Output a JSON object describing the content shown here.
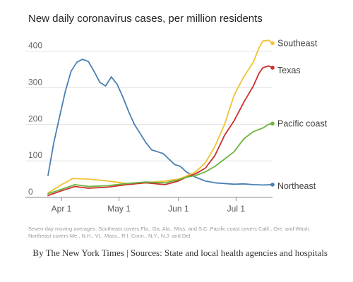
{
  "chart_data": {
    "type": "line",
    "title": "New daily coronavirus cases, per million residents",
    "x_ticks": [
      "Apr 1",
      "May 1",
      "Jun 1",
      "Jul 1"
    ],
    "y_ticks": [
      0,
      100,
      200,
      300,
      400
    ],
    "ylim": [
      0,
      440
    ],
    "x_range": [
      "2020-03-25",
      "2020-07-20"
    ],
    "grid": true,
    "legend": "direct labels at line ends",
    "series": [
      {
        "name": "Northeast",
        "color": "#4a7fb3",
        "x": [
          "2020-03-25",
          "2020-03-28",
          "2020-03-31",
          "2020-04-03",
          "2020-04-06",
          "2020-04-09",
          "2020-04-12",
          "2020-04-15",
          "2020-04-18",
          "2020-04-21",
          "2020-04-24",
          "2020-04-27",
          "2020-04-30",
          "2020-05-03",
          "2020-05-06",
          "2020-05-09",
          "2020-05-12",
          "2020-05-15",
          "2020-05-18",
          "2020-05-21",
          "2020-05-24",
          "2020-05-27",
          "2020-05-30",
          "2020-06-02",
          "2020-06-05",
          "2020-06-10",
          "2020-06-15",
          "2020-06-20",
          "2020-06-25",
          "2020-06-30",
          "2020-07-05",
          "2020-07-10",
          "2020-07-15",
          "2020-07-20"
        ],
        "values": [
          60,
          150,
          220,
          290,
          345,
          370,
          378,
          372,
          345,
          315,
          305,
          330,
          310,
          275,
          235,
          200,
          175,
          150,
          130,
          125,
          120,
          105,
          90,
          85,
          70,
          55,
          45,
          40,
          38,
          36,
          37,
          35,
          34,
          35
        ]
      },
      {
        "name": "Southeast",
        "color": "#f1c232",
        "x": [
          "2020-03-25",
          "2020-04-01",
          "2020-04-07",
          "2020-04-15",
          "2020-04-25",
          "2020-05-05",
          "2020-05-15",
          "2020-05-25",
          "2020-06-01",
          "2020-06-05",
          "2020-06-10",
          "2020-06-15",
          "2020-06-20",
          "2020-06-25",
          "2020-06-30",
          "2020-07-05",
          "2020-07-10",
          "2020-07-13",
          "2020-07-15",
          "2020-07-18",
          "2020-07-20"
        ],
        "values": [
          12,
          35,
          52,
          50,
          45,
          38,
          40,
          45,
          50,
          58,
          70,
          95,
          140,
          200,
          280,
          330,
          370,
          410,
          428,
          430,
          422
        ]
      },
      {
        "name": "Texas",
        "color": "#c9302c",
        "x": [
          "2020-03-25",
          "2020-04-01",
          "2020-04-08",
          "2020-04-15",
          "2020-04-25",
          "2020-05-05",
          "2020-05-15",
          "2020-05-25",
          "2020-06-01",
          "2020-06-05",
          "2020-06-10",
          "2020-06-15",
          "2020-06-20",
          "2020-06-25",
          "2020-06-30",
          "2020-07-05",
          "2020-07-10",
          "2020-07-13",
          "2020-07-15",
          "2020-07-18",
          "2020-07-20"
        ],
        "values": [
          5,
          18,
          30,
          25,
          28,
          35,
          40,
          35,
          45,
          55,
          65,
          80,
          115,
          170,
          210,
          260,
          305,
          340,
          355,
          360,
          355
        ]
      },
      {
        "name": "Pacific coast",
        "color": "#6cb33f",
        "x": [
          "2020-03-25",
          "2020-04-01",
          "2020-04-08",
          "2020-04-15",
          "2020-04-25",
          "2020-05-05",
          "2020-05-15",
          "2020-05-25",
          "2020-06-01",
          "2020-06-05",
          "2020-06-10",
          "2020-06-15",
          "2020-06-20",
          "2020-06-25",
          "2020-06-30",
          "2020-07-05",
          "2020-07-10",
          "2020-07-15",
          "2020-07-18",
          "2020-07-20"
        ],
        "values": [
          10,
          22,
          35,
          30,
          32,
          38,
          42,
          40,
          48,
          55,
          60,
          70,
          85,
          105,
          125,
          160,
          180,
          190,
          200,
          202
        ]
      }
    ]
  },
  "note": "Seven-day moving averages. Southeast covers Fla., Ga, Ala., Miss. and S.C. Pacific coast covers Calif., Ore. and Wash. Northeast covers Me., N.H., Vt., Mass., R.I. Conn., N.Y., N.J. and Del.",
  "credit": "By The New York Times | Sources: State and local health agencies and hospitals"
}
